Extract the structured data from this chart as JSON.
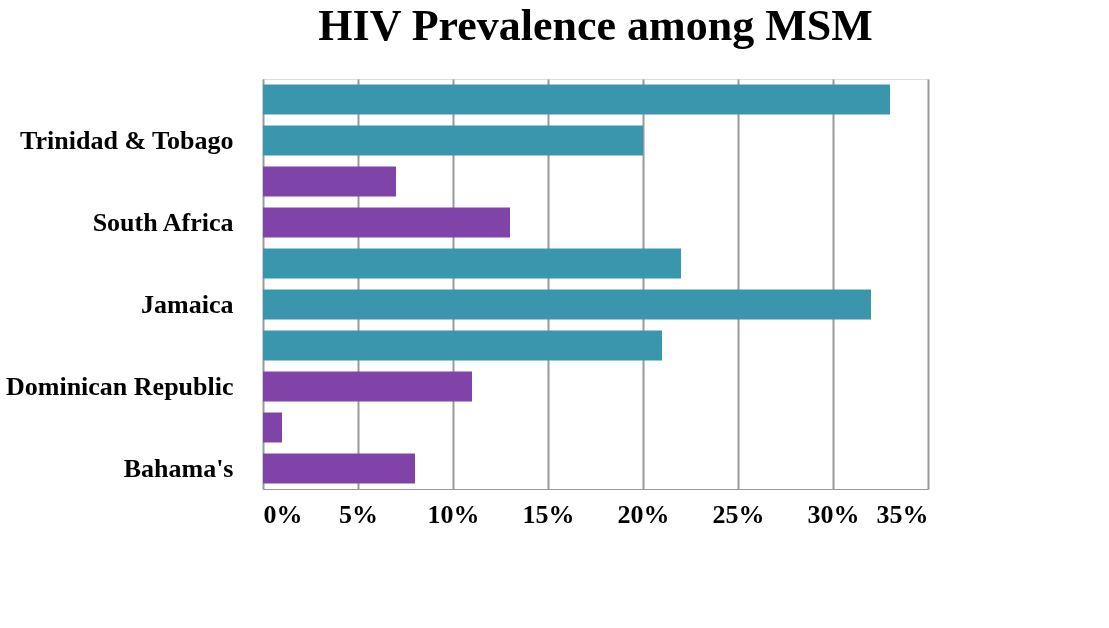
{
  "chart_data": {
    "type": "bar",
    "orientation": "horizontal",
    "title": "HIV Prevalence among MSM",
    "categories": [
      null,
      "Trinidad & Tobago",
      null,
      "South Africa",
      null,
      "Jamaica",
      null,
      "Dominican Republic",
      null,
      "Bahama's"
    ],
    "values": [
      33,
      20,
      7,
      13,
      22,
      32,
      21,
      11,
      1,
      8
    ],
    "colors": [
      "#3a96ad",
      "#3a96ad",
      "#8044a8",
      "#8044a8",
      "#3a96ad",
      "#3a96ad",
      "#3a96ad",
      "#8044a8",
      "#8044a8",
      "#8044a8"
    ],
    "xlim": [
      0,
      35
    ],
    "xticks": [
      {
        "value": 0,
        "label": "0%"
      },
      {
        "value": 5,
        "label": "5%"
      },
      {
        "value": 10,
        "label": "10%"
      },
      {
        "value": 15,
        "label": "15%"
      },
      {
        "value": 20,
        "label": "20%"
      },
      {
        "value": 25,
        "label": "25%"
      },
      {
        "value": 30,
        "label": "30%"
      },
      {
        "value": 35,
        "label": "35%"
      }
    ],
    "grid": "x",
    "legend": false
  }
}
